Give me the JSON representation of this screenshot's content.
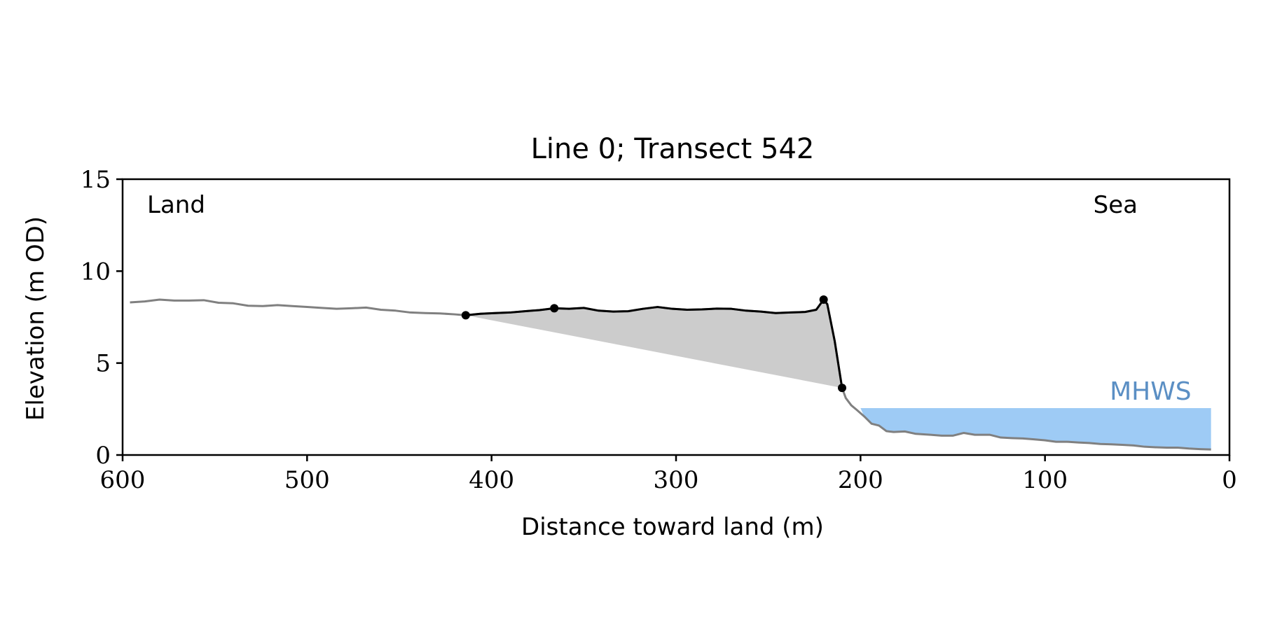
{
  "chart_data": {
    "type": "line",
    "title": "Line 0; Transect 542",
    "xlabel": "Distance toward land (m)",
    "ylabel": "Elevation (m OD)",
    "x_reversed": true,
    "xlim": [
      600,
      0
    ],
    "ylim": [
      0,
      15
    ],
    "xticks": [
      600,
      500,
      400,
      300,
      200,
      100,
      0
    ],
    "yticks": [
      0,
      5,
      10,
      15
    ],
    "grid": false,
    "annotations": {
      "land_label": "Land",
      "sea_label": "Sea",
      "mhws_label": "MHWS"
    },
    "mhws": {
      "elevation": 2.55,
      "x_from": 200,
      "x_to": 10
    },
    "colors": {
      "profile": "#808080",
      "segment": "#000000",
      "fill": "#cccccc",
      "mhws_fill": "#9ecbf5",
      "mhws_text": "#5b8fc4"
    },
    "series": [
      {
        "x": [
          596,
          588,
          580,
          572,
          564,
          556,
          548,
          540,
          532,
          524,
          516,
          508,
          500,
          492,
          484,
          476,
          468,
          460,
          452,
          444,
          436,
          428,
          420,
          414,
          406,
          398,
          390,
          382,
          374,
          366,
          358,
          350,
          342,
          334,
          326,
          318,
          310,
          302,
          294,
          286,
          278,
          270,
          262,
          254,
          246,
          238,
          230,
          224,
          220,
          218,
          214,
          210,
          208,
          205,
          202,
          198,
          194,
          190,
          186,
          182,
          176,
          170,
          162,
          156,
          150,
          144,
          138,
          130,
          124,
          118,
          112,
          106,
          100,
          94,
          88,
          82,
          76,
          70,
          64,
          58,
          52,
          46,
          40,
          34,
          28,
          22,
          16,
          10
        ],
        "y": [
          8.3,
          8.35,
          8.45,
          8.4,
          8.4,
          8.42,
          8.28,
          8.25,
          8.12,
          8.1,
          8.15,
          8.1,
          8.05,
          8.0,
          7.95,
          7.98,
          8.02,
          7.9,
          7.85,
          7.75,
          7.72,
          7.7,
          7.65,
          7.6,
          7.68,
          7.72,
          7.75,
          7.82,
          7.88,
          7.98,
          7.95,
          8.0,
          7.85,
          7.8,
          7.82,
          7.95,
          8.05,
          7.95,
          7.9,
          7.92,
          7.96,
          7.95,
          7.85,
          7.8,
          7.72,
          7.75,
          7.78,
          7.9,
          8.45,
          8.2,
          6.2,
          3.65,
          3.1,
          2.7,
          2.45,
          2.1,
          1.7,
          1.6,
          1.3,
          1.25,
          1.28,
          1.15,
          1.1,
          1.05,
          1.05,
          1.2,
          1.1,
          1.1,
          0.95,
          0.92,
          0.9,
          0.85,
          0.8,
          0.72,
          0.72,
          0.68,
          0.65,
          0.6,
          0.58,
          0.55,
          0.52,
          0.45,
          0.42,
          0.4,
          0.4,
          0.35,
          0.32,
          0.3
        ]
      }
    ],
    "highlight_segment": {
      "x_from": 414,
      "x_to": 210
    },
    "markers": [
      {
        "x": 414,
        "y": 7.6
      },
      {
        "x": 366,
        "y": 7.98
      },
      {
        "x": 220,
        "y": 8.45
      },
      {
        "x": 210,
        "y": 3.65
      }
    ],
    "shaded_area": {
      "top_x_from": 414,
      "top_x_to": 210,
      "baseline": [
        [
          414,
          7.6
        ],
        [
          210,
          3.65
        ]
      ]
    }
  }
}
